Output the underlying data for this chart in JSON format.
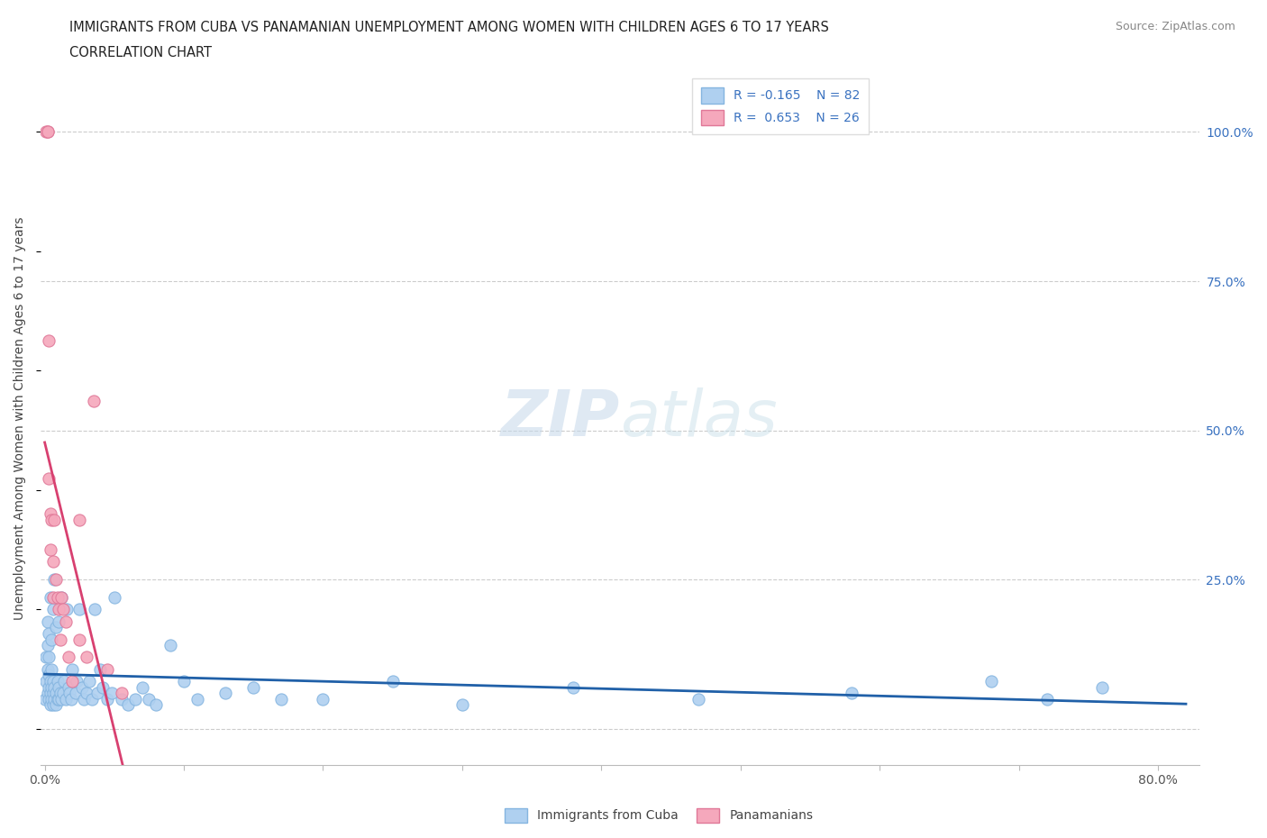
{
  "title": "IMMIGRANTS FROM CUBA VS PANAMANIAN UNEMPLOYMENT AMONG WOMEN WITH CHILDREN AGES 6 TO 17 YEARS",
  "subtitle": "CORRELATION CHART",
  "source": "Source: ZipAtlas.com",
  "ylabel": "Unemployment Among Women with Children Ages 6 to 17 years",
  "ytick_labels": [
    "",
    "25.0%",
    "50.0%",
    "75.0%",
    "100.0%"
  ],
  "yticks_pos": [
    0.0,
    0.25,
    0.5,
    0.75,
    1.0
  ],
  "xlim": [
    -0.003,
    0.83
  ],
  "ylim": [
    -0.06,
    1.1
  ],
  "cuba_color": "#afd0f0",
  "panama_color": "#f5a8bc",
  "cuba_edge": "#85b5e0",
  "panama_edge": "#e07898",
  "trend_cuba_color": "#2060a8",
  "trend_panama_color": "#d84070",
  "watermark_zip": "ZIP",
  "watermark_atlas": "atlas",
  "legend_r_cuba": "R = -0.165",
  "legend_n_cuba": "N = 82",
  "legend_r_panama": "R =  0.653",
  "legend_n_panama": "N = 26",
  "legend_label_cuba": "Immigrants from Cuba",
  "legend_label_panama": "Panamanians",
  "cuba_x": [
    0.0005,
    0.001,
    0.001,
    0.002,
    0.002,
    0.002,
    0.002,
    0.003,
    0.003,
    0.003,
    0.003,
    0.003,
    0.004,
    0.004,
    0.004,
    0.004,
    0.005,
    0.005,
    0.005,
    0.005,
    0.006,
    0.006,
    0.006,
    0.006,
    0.007,
    0.007,
    0.007,
    0.008,
    0.008,
    0.008,
    0.009,
    0.009,
    0.01,
    0.01,
    0.01,
    0.011,
    0.012,
    0.012,
    0.013,
    0.014,
    0.015,
    0.016,
    0.017,
    0.018,
    0.019,
    0.02,
    0.022,
    0.023,
    0.025,
    0.027,
    0.028,
    0.03,
    0.032,
    0.034,
    0.036,
    0.038,
    0.04,
    0.042,
    0.045,
    0.048,
    0.05,
    0.055,
    0.06,
    0.065,
    0.07,
    0.075,
    0.08,
    0.09,
    0.1,
    0.11,
    0.13,
    0.15,
    0.17,
    0.2,
    0.25,
    0.3,
    0.38,
    0.47,
    0.58,
    0.68,
    0.72,
    0.76
  ],
  "cuba_y": [
    0.05,
    0.08,
    0.12,
    0.06,
    0.1,
    0.14,
    0.18,
    0.05,
    0.07,
    0.09,
    0.12,
    0.16,
    0.04,
    0.06,
    0.08,
    0.22,
    0.05,
    0.07,
    0.1,
    0.15,
    0.04,
    0.06,
    0.08,
    0.2,
    0.05,
    0.07,
    0.25,
    0.04,
    0.06,
    0.17,
    0.05,
    0.08,
    0.05,
    0.07,
    0.18,
    0.06,
    0.05,
    0.22,
    0.06,
    0.08,
    0.05,
    0.2,
    0.07,
    0.06,
    0.05,
    0.1,
    0.06,
    0.08,
    0.2,
    0.07,
    0.05,
    0.06,
    0.08,
    0.05,
    0.2,
    0.06,
    0.1,
    0.07,
    0.05,
    0.06,
    0.22,
    0.05,
    0.04,
    0.05,
    0.07,
    0.05,
    0.04,
    0.14,
    0.08,
    0.05,
    0.06,
    0.07,
    0.05,
    0.05,
    0.08,
    0.04,
    0.07,
    0.05,
    0.06,
    0.08,
    0.05,
    0.07
  ],
  "panama_x": [
    0.001,
    0.002,
    0.002,
    0.003,
    0.003,
    0.004,
    0.004,
    0.005,
    0.006,
    0.006,
    0.007,
    0.008,
    0.009,
    0.01,
    0.011,
    0.012,
    0.013,
    0.015,
    0.017,
    0.02,
    0.025,
    0.025,
    0.03,
    0.035,
    0.045,
    0.055
  ],
  "panama_y": [
    1.0,
    1.0,
    1.0,
    0.65,
    0.42,
    0.36,
    0.3,
    0.35,
    0.28,
    0.22,
    0.35,
    0.25,
    0.22,
    0.2,
    0.15,
    0.22,
    0.2,
    0.18,
    0.12,
    0.08,
    0.35,
    0.15,
    0.12,
    0.55,
    0.1,
    0.06
  ],
  "panama_trend_x0": 0.0,
  "panama_trend_x1": 0.057,
  "cuba_trend_x0": 0.0,
  "cuba_trend_x1": 0.82
}
